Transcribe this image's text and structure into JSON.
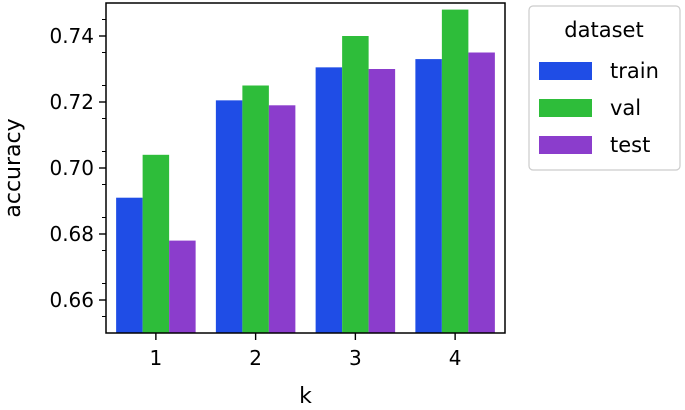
{
  "chart_data": {
    "type": "bar",
    "xlabel": "k",
    "ylabel": "accuracy",
    "categories": [
      "1",
      "2",
      "3",
      "4"
    ],
    "ylim": [
      0.65,
      0.75
    ],
    "yticks": [
      0.66,
      0.68,
      0.7,
      0.72,
      0.74
    ],
    "ytick_labels": [
      "0.66",
      "0.68",
      "0.70",
      "0.72",
      "0.74"
    ],
    "grid": false,
    "legend": {
      "title": "dataset",
      "placement": "outside-right-top"
    },
    "series": [
      {
        "name": "train",
        "color": "#1f4de6",
        "values": [
          0.691,
          0.7205,
          0.7305,
          0.733
        ]
      },
      {
        "name": "val",
        "color": "#2ebd3a",
        "values": [
          0.704,
          0.725,
          0.74,
          0.748
        ]
      },
      {
        "name": "test",
        "color": "#8b3dcc",
        "values": [
          0.678,
          0.719,
          0.73,
          0.735
        ]
      }
    ]
  }
}
